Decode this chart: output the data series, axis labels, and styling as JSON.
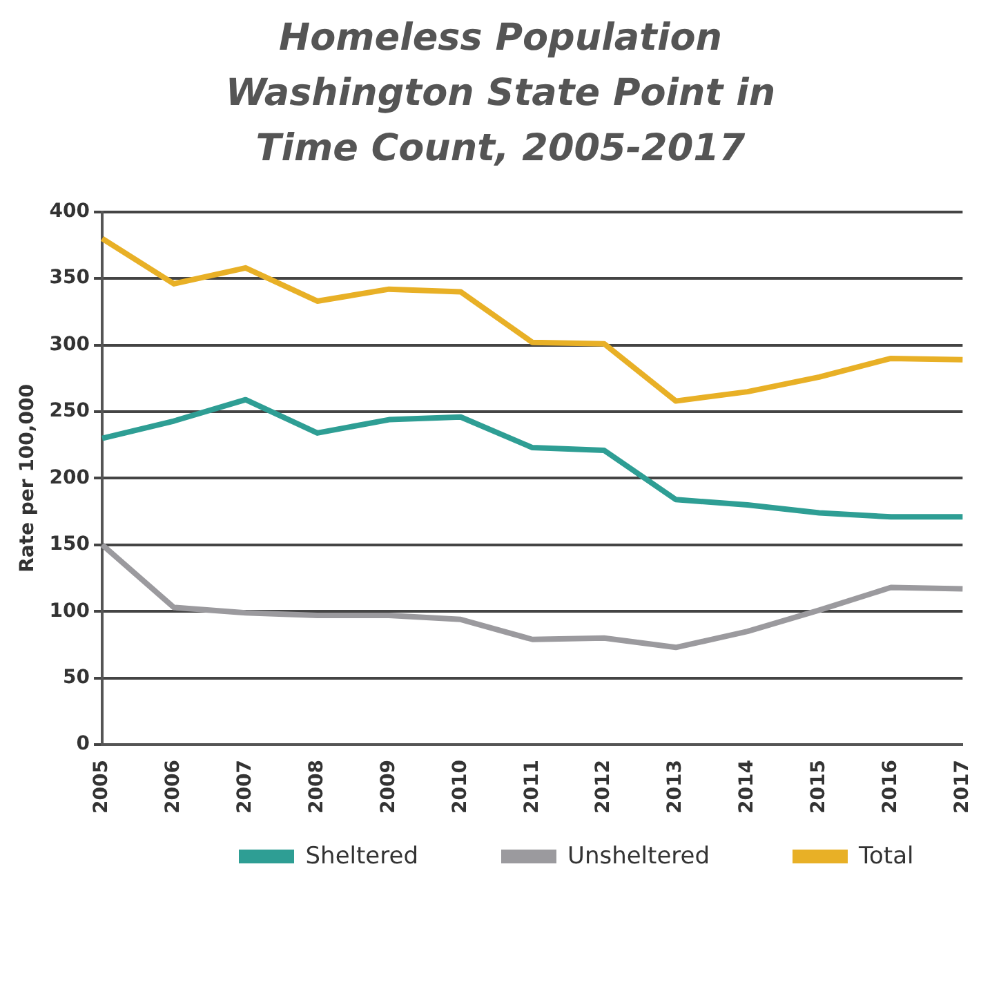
{
  "chart_data": {
    "type": "line",
    "title": "Homeless Population Washington State Point in Time Count, 2005-2017",
    "ylabel": "Rate per 100,000",
    "categories": [
      "2005",
      "2006",
      "2007",
      "2008",
      "2009",
      "2010",
      "2011",
      "2012",
      "2013",
      "2014",
      "2015",
      "2016",
      "2017"
    ],
    "series": [
      {
        "name": "Sheltered",
        "color": "#2e9e94",
        "values": [
          230,
          243,
          259,
          234,
          244,
          246,
          223,
          221,
          184,
          180,
          174,
          171,
          171
        ]
      },
      {
        "name": "Unsheltered",
        "color": "#9b9a9e",
        "values": [
          150,
          103,
          99,
          97,
          97,
          94,
          79,
          80,
          73,
          85,
          101,
          118,
          117
        ]
      },
      {
        "name": "Total",
        "color": "#e8b026",
        "values": [
          380,
          346,
          358,
          333,
          342,
          340,
          302,
          301,
          258,
          265,
          276,
          290,
          289
        ]
      }
    ],
    "ylim": [
      0,
      400
    ],
    "yticks": [
      0,
      50,
      100,
      150,
      200,
      250,
      300,
      350,
      400
    ],
    "grid": "y",
    "legend": "bottom",
    "marker": "none",
    "line_style": "solid"
  }
}
